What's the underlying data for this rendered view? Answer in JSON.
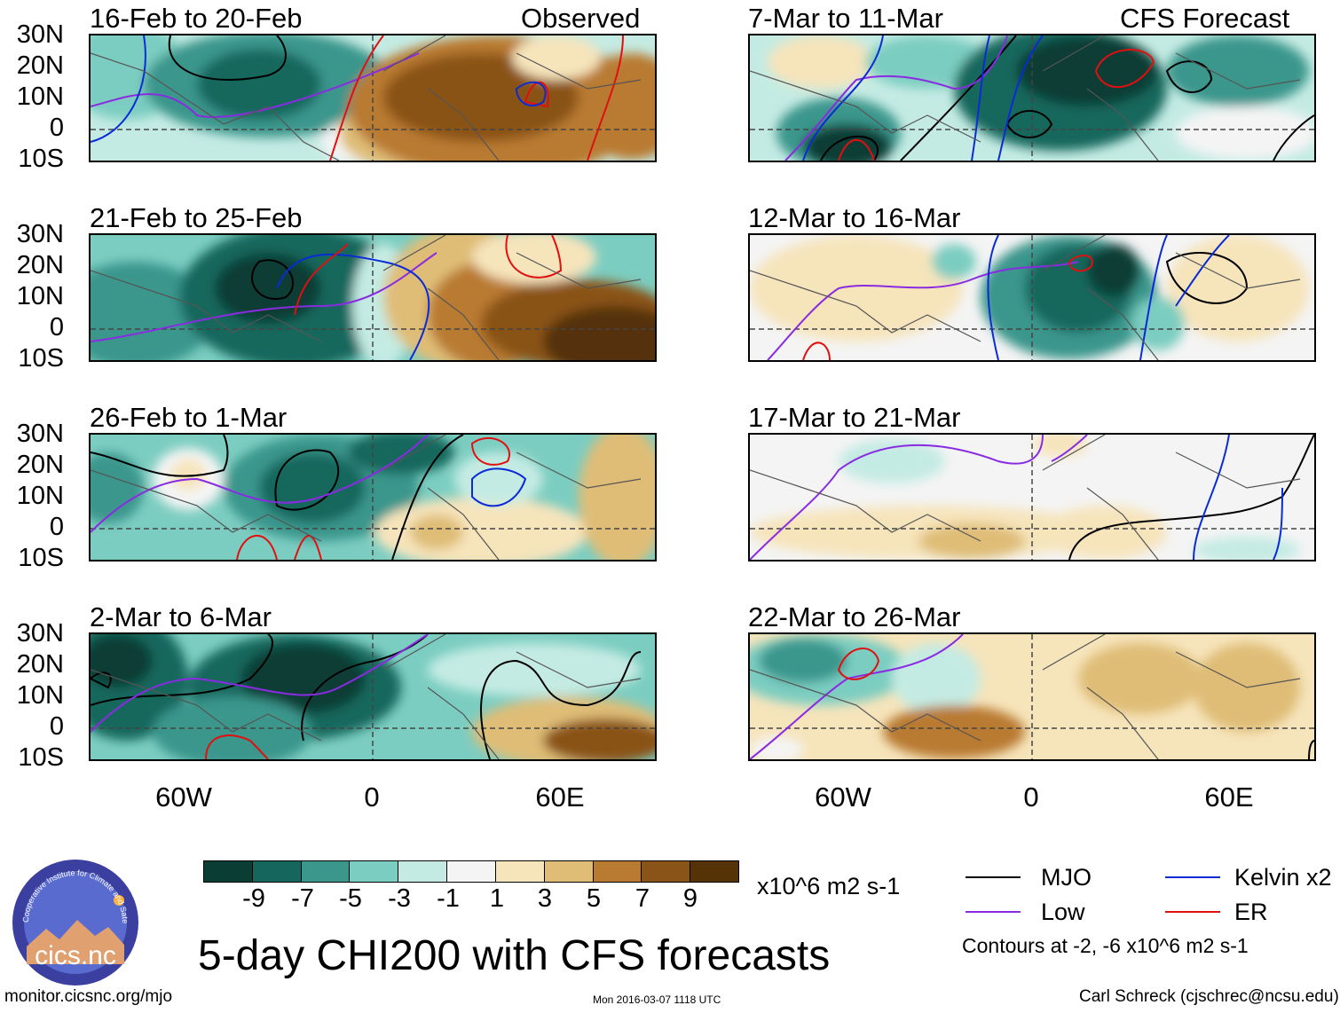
{
  "map_panels": [
    {
      "id": "p1",
      "title": "16-Feb to 20-Feb",
      "tag": "Observed",
      "column": "observed",
      "row": 0
    },
    {
      "id": "p2",
      "title": "21-Feb to 25-Feb",
      "tag": "",
      "column": "observed",
      "row": 1
    },
    {
      "id": "p3",
      "title": "26-Feb to 1-Mar",
      "tag": "",
      "column": "observed",
      "row": 2
    },
    {
      "id": "p4",
      "title": "2-Mar to 6-Mar",
      "tag": "",
      "column": "observed",
      "row": 3
    },
    {
      "id": "p5",
      "title": "7-Mar to 11-Mar",
      "tag": "CFS Forecast",
      "column": "forecast",
      "row": 0
    },
    {
      "id": "p6",
      "title": "12-Mar to 16-Mar",
      "tag": "",
      "column": "forecast",
      "row": 1
    },
    {
      "id": "p7",
      "title": "17-Mar to 21-Mar",
      "tag": "",
      "column": "forecast",
      "row": 2
    },
    {
      "id": "p8",
      "title": "22-Mar to 26-Mar",
      "tag": "",
      "column": "forecast",
      "row": 3
    }
  ],
  "axes": {
    "lat_labels": [
      "30N",
      "20N",
      "10N",
      "0",
      "10S"
    ],
    "lon_labels": [
      "60W",
      "0",
      "60E"
    ]
  },
  "colorbar": {
    "ticks": [
      "-9",
      "-7",
      "-5",
      "-3",
      "-1",
      "1",
      "3",
      "5",
      "7",
      "9"
    ],
    "colors": [
      "#0a3d34",
      "#15675d",
      "#3b968c",
      "#7ccdc1",
      "#c4ebe3",
      "#f4f4f4",
      "#f6e4bb",
      "#dfbd77",
      "#b97a31",
      "#8a5317",
      "#553307"
    ],
    "units": "x10^6 m2 s-1"
  },
  "title": "5-day CHI200 with CFS forecasts",
  "legend": {
    "items": [
      {
        "label": "MJO",
        "color": "#000000"
      },
      {
        "label": "Kelvin x2",
        "color": "#0b2bd6"
      },
      {
        "label": "Low",
        "color": "#8a2be2"
      },
      {
        "label": "ER",
        "color": "#e01010"
      }
    ],
    "note": "Contours at -2, -6 x10^6 m2 s-1"
  },
  "footer": {
    "url": "monitor.cicsnc.org/mjo",
    "timestamp": "Mon 2016-03-07 1118 UTC",
    "author": "Carl Schreck (cjschrec@ncsu.edu)"
  },
  "logo": {
    "text": "cics.nc",
    "arc_text": "Cooperative Institute for Climate and Satellites"
  }
}
